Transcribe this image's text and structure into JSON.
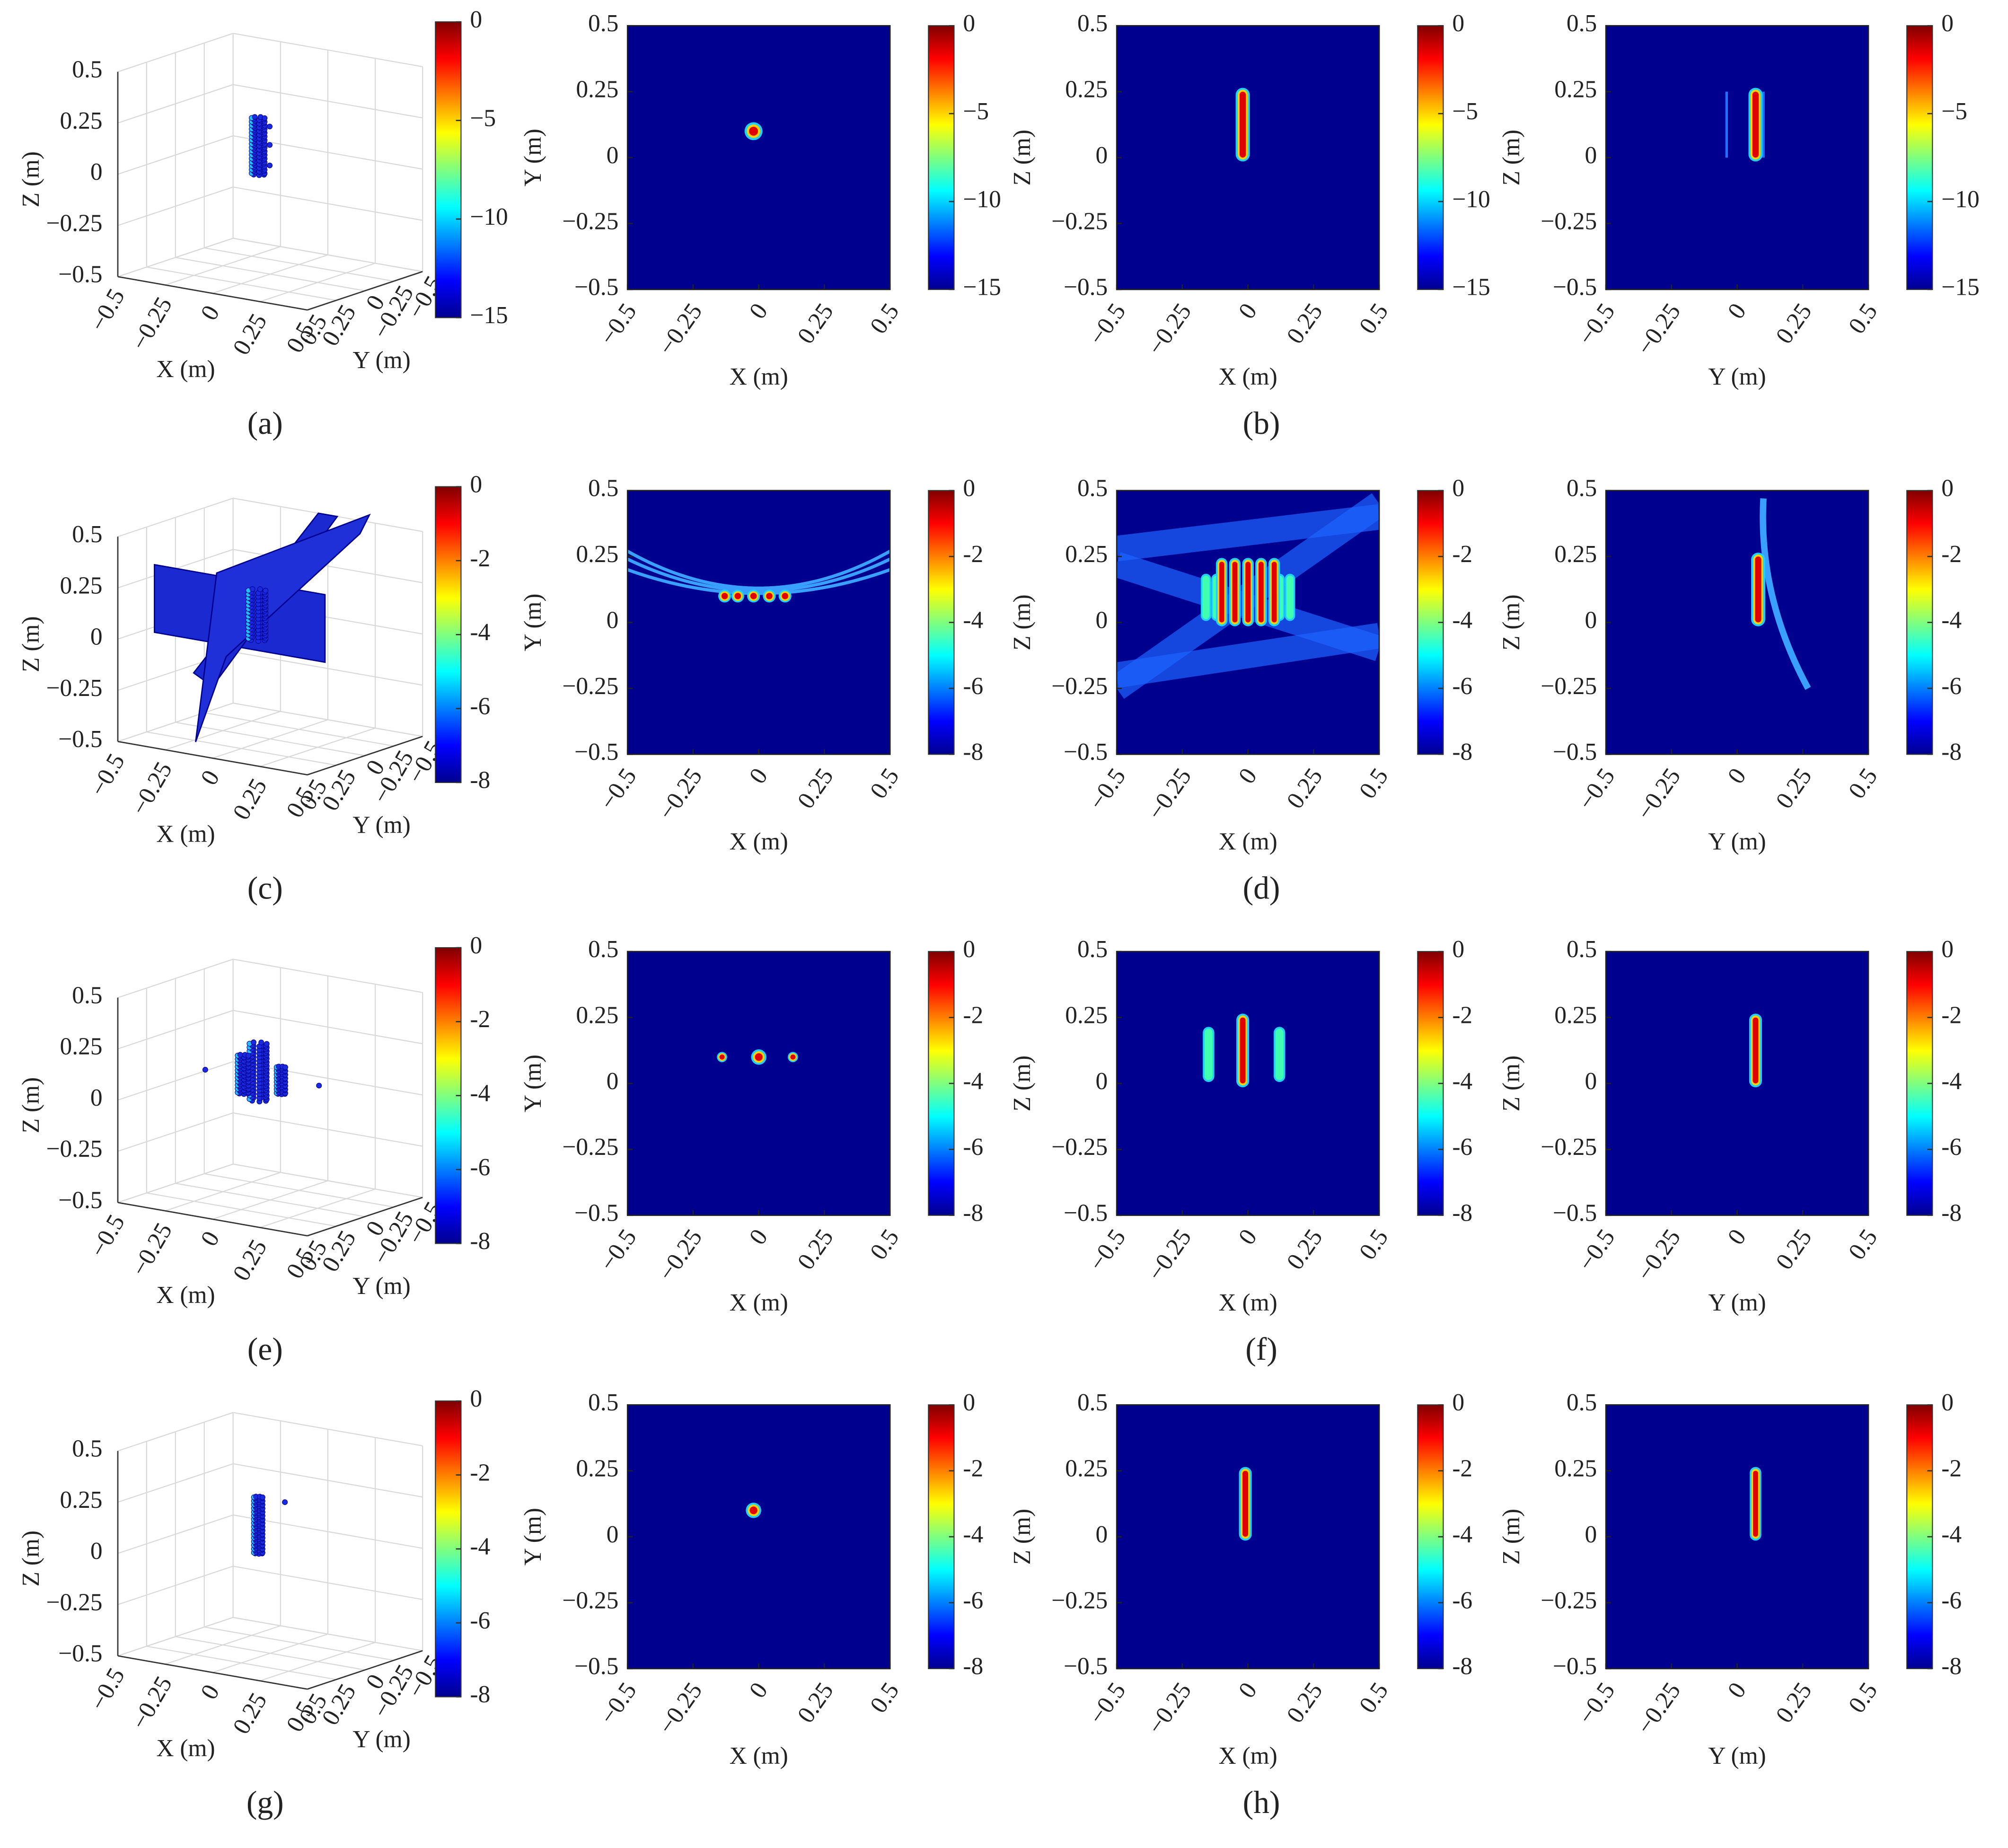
{
  "chart_data": [
    {
      "type": "scatter3d",
      "xlabel": "X (m)",
      "ylabel": "Y (m)",
      "zlabel": "Z (m)",
      "xlim": [
        -0.5,
        0.5
      ],
      "ylim": [
        -0.5,
        0.5
      ],
      "zlim": [
        -0.5,
        0.5
      ],
      "xticks": [
        {
          "value": -0.5,
          "label": "−0.5"
        },
        {
          "value": -0.25,
          "label": "−0.25"
        },
        0,
        0.25,
        0.5
      ],
      "yticks": [
        {
          "value": -0.5,
          "label": "−0.5"
        },
        {
          "value": -0.25,
          "label": "−0.25"
        },
        0,
        0.25,
        0.5
      ],
      "zticks": [
        {
          "value": -0.5,
          "label": "−0.5"
        },
        {
          "value": -0.25,
          "label": "−0.25"
        },
        0,
        0.25,
        0.5
      ],
      "clim": [
        -15,
        0
      ],
      "cticks": [
        0,
        {
          "value": -5,
          "label": "−5"
        },
        {
          "value": -10,
          "label": "−10"
        },
        {
          "value": -15,
          "label": "−15"
        }
      ],
      "colormap": "jet"
    },
    {
      "type": "heatmap",
      "xlabel": "X (m)",
      "ylabel": "Y (m)",
      "xlim": [
        -0.5,
        0.5
      ],
      "ylim": [
        -0.5,
        0.5
      ],
      "xticks": [
        {
          "value": -0.5,
          "label": "−0.5"
        },
        {
          "value": -0.25,
          "label": "−0.25"
        },
        0,
        0.25,
        0.5
      ],
      "yticks": [
        {
          "value": -0.5,
          "label": "−0.5"
        },
        {
          "value": -0.25,
          "label": "−0.25"
        },
        0,
        0.25,
        0.5
      ],
      "clim": [
        -15,
        0
      ],
      "cticks": [
        0,
        {
          "value": -5,
          "label": "−5"
        },
        {
          "value": -10,
          "label": "−10"
        },
        {
          "value": -15,
          "label": "−15"
        }
      ],
      "colormap": "jet"
    },
    {
      "type": "heatmap",
      "xlabel": "X (m)",
      "ylabel": "Z (m)",
      "xlim": [
        -0.5,
        0.5
      ],
      "ylim": [
        -0.5,
        0.5
      ],
      "xticks": [
        {
          "value": -0.5,
          "label": "−0.5"
        },
        {
          "value": -0.25,
          "label": "−0.25"
        },
        0,
        0.25,
        0.5
      ],
      "yticks": [
        {
          "value": -0.5,
          "label": "−0.5"
        },
        {
          "value": -0.25,
          "label": "−0.25"
        },
        0,
        0.25,
        0.5
      ],
      "clim": [
        -15,
        0
      ],
      "cticks": [
        0,
        {
          "value": -5,
          "label": "−5"
        },
        {
          "value": -10,
          "label": "−10"
        },
        {
          "value": -15,
          "label": "−15"
        }
      ],
      "colormap": "jet"
    },
    {
      "type": "heatmap",
      "xlabel": "Y (m)",
      "ylabel": "Z (m)",
      "xlim": [
        -0.5,
        0.5
      ],
      "ylim": [
        -0.5,
        0.5
      ],
      "xticks": [
        {
          "value": -0.5,
          "label": "−0.5"
        },
        {
          "value": -0.25,
          "label": "−0.25"
        },
        0,
        0.25,
        0.5
      ],
      "yticks": [
        {
          "value": -0.5,
          "label": "−0.5"
        },
        {
          "value": -0.25,
          "label": "−0.25"
        },
        0,
        0.25,
        0.5
      ],
      "clim": [
        -15,
        0
      ],
      "cticks": [
        0,
        {
          "value": -5,
          "label": "−5"
        },
        {
          "value": -10,
          "label": "−10"
        },
        {
          "value": -15,
          "label": "−15"
        }
      ],
      "colormap": "jet"
    },
    {
      "type": "scatter3d",
      "xlabel": "X (m)",
      "ylabel": "Y (m)",
      "zlabel": "Z (m)",
      "xlim": [
        -0.5,
        0.5
      ],
      "ylim": [
        -0.5,
        0.5
      ],
      "zlim": [
        -0.5,
        0.5
      ],
      "xticks": [
        {
          "value": -0.5,
          "label": "−0.5"
        },
        {
          "value": -0.25,
          "label": "−0.25"
        },
        0,
        0.25,
        0.5
      ],
      "yticks": [
        {
          "value": -0.5,
          "label": "−0.5"
        },
        {
          "value": -0.25,
          "label": "−0.25"
        },
        0,
        0.25,
        0.5
      ],
      "zticks": [
        {
          "value": -0.5,
          "label": "−0.5"
        },
        {
          "value": -0.25,
          "label": "−0.25"
        },
        0,
        0.25,
        0.5
      ],
      "clim": [
        -8,
        0
      ],
      "cticks": [
        0,
        -2,
        -4,
        -6,
        -8
      ],
      "colormap": "jet"
    },
    {
      "type": "heatmap",
      "xlabel": "X (m)",
      "ylabel": "Y (m)",
      "xlim": [
        -0.5,
        0.5
      ],
      "ylim": [
        -0.5,
        0.5
      ],
      "xticks": [
        {
          "value": -0.5,
          "label": "−0.5"
        },
        {
          "value": -0.25,
          "label": "−0.25"
        },
        0,
        0.25,
        0.5
      ],
      "yticks": [
        {
          "value": -0.5,
          "label": "−0.5"
        },
        {
          "value": -0.25,
          "label": "−0.25"
        },
        0,
        0.25,
        0.5
      ],
      "clim": [
        -8,
        0
      ],
      "cticks": [
        0,
        -2,
        -4,
        -6,
        -8
      ],
      "colormap": "jet"
    },
    {
      "type": "heatmap",
      "xlabel": "X (m)",
      "ylabel": "Z (m)",
      "xlim": [
        -0.5,
        0.5
      ],
      "ylim": [
        -0.5,
        0.5
      ],
      "xticks": [
        {
          "value": -0.5,
          "label": "−0.5"
        },
        {
          "value": -0.25,
          "label": "−0.25"
        },
        0,
        0.25,
        0.5
      ],
      "yticks": [
        {
          "value": -0.5,
          "label": "−0.5"
        },
        {
          "value": -0.25,
          "label": "−0.25"
        },
        0,
        0.25,
        0.5
      ],
      "clim": [
        -8,
        0
      ],
      "cticks": [
        0,
        -2,
        -4,
        -6,
        -8
      ],
      "colormap": "jet"
    },
    {
      "type": "heatmap",
      "xlabel": "Y (m)",
      "ylabel": "Z (m)",
      "xlim": [
        -0.5,
        0.5
      ],
      "ylim": [
        -0.5,
        0.5
      ],
      "xticks": [
        {
          "value": -0.5,
          "label": "−0.5"
        },
        {
          "value": -0.25,
          "label": "−0.25"
        },
        0,
        0.25,
        0.5
      ],
      "yticks": [
        {
          "value": -0.5,
          "label": "−0.5"
        },
        {
          "value": -0.25,
          "label": "−0.25"
        },
        0,
        0.25,
        0.5
      ],
      "clim": [
        -8,
        0
      ],
      "cticks": [
        0,
        -2,
        -4,
        -6,
        -8
      ],
      "colormap": "jet"
    },
    {
      "type": "scatter3d",
      "xlabel": "X (m)",
      "ylabel": "Y (m)",
      "zlabel": "Z (m)",
      "xlim": [
        -0.5,
        0.5
      ],
      "ylim": [
        -0.5,
        0.5
      ],
      "zlim": [
        -0.5,
        0.5
      ],
      "xticks": [
        {
          "value": -0.5,
          "label": "−0.5"
        },
        {
          "value": -0.25,
          "label": "−0.25"
        },
        0,
        0.25,
        0.5
      ],
      "yticks": [
        {
          "value": -0.5,
          "label": "−0.5"
        },
        {
          "value": -0.25,
          "label": "−0.25"
        },
        0,
        0.25,
        0.5
      ],
      "zticks": [
        {
          "value": -0.5,
          "label": "−0.5"
        },
        {
          "value": -0.25,
          "label": "−0.25"
        },
        0,
        0.25,
        0.5
      ],
      "clim": [
        -8,
        0
      ],
      "cticks": [
        0,
        -2,
        -4,
        -6,
        -8
      ],
      "colormap": "jet"
    },
    {
      "type": "heatmap",
      "xlabel": "X (m)",
      "ylabel": "Y (m)",
      "xlim": [
        -0.5,
        0.5
      ],
      "ylim": [
        -0.5,
        0.5
      ],
      "xticks": [
        {
          "value": -0.5,
          "label": "−0.5"
        },
        {
          "value": -0.25,
          "label": "−0.25"
        },
        0,
        0.25,
        0.5
      ],
      "yticks": [
        {
          "value": -0.5,
          "label": "−0.5"
        },
        {
          "value": -0.25,
          "label": "−0.25"
        },
        0,
        0.25,
        0.5
      ],
      "clim": [
        -8,
        0
      ],
      "cticks": [
        0,
        -2,
        -4,
        -6,
        -8
      ],
      "colormap": "jet"
    },
    {
      "type": "heatmap",
      "xlabel": "X (m)",
      "ylabel": "Z (m)",
      "xlim": [
        -0.5,
        0.5
      ],
      "ylim": [
        -0.5,
        0.5
      ],
      "xticks": [
        {
          "value": -0.5,
          "label": "−0.5"
        },
        {
          "value": -0.25,
          "label": "−0.25"
        },
        0,
        0.25,
        0.5
      ],
      "yticks": [
        {
          "value": -0.5,
          "label": "−0.5"
        },
        {
          "value": -0.25,
          "label": "−0.25"
        },
        0,
        0.25,
        0.5
      ],
      "clim": [
        -8,
        0
      ],
      "cticks": [
        0,
        -2,
        -4,
        -6,
        -8
      ],
      "colormap": "jet"
    },
    {
      "type": "heatmap",
      "xlabel": "Y (m)",
      "ylabel": "Z (m)",
      "xlim": [
        -0.5,
        0.5
      ],
      "ylim": [
        -0.5,
        0.5
      ],
      "xticks": [
        {
          "value": -0.5,
          "label": "−0.5"
        },
        {
          "value": -0.25,
          "label": "−0.25"
        },
        0,
        0.25,
        0.5
      ],
      "yticks": [
        {
          "value": -0.5,
          "label": "−0.5"
        },
        {
          "value": -0.25,
          "label": "−0.25"
        },
        0,
        0.25,
        0.5
      ],
      "clim": [
        -8,
        0
      ],
      "cticks": [
        0,
        -2,
        -4,
        -6,
        -8
      ],
      "colormap": "jet"
    },
    {
      "type": "scatter3d",
      "xlabel": "X (m)",
      "ylabel": "Y (m)",
      "zlabel": "Z (m)",
      "xlim": [
        -0.5,
        0.5
      ],
      "ylim": [
        -0.5,
        0.5
      ],
      "zlim": [
        -0.5,
        0.5
      ],
      "xticks": [
        {
          "value": -0.5,
          "label": "−0.5"
        },
        {
          "value": -0.25,
          "label": "−0.25"
        },
        0,
        0.25,
        0.5
      ],
      "yticks": [
        {
          "value": -0.5,
          "label": "−0.5"
        },
        {
          "value": -0.25,
          "label": "−0.25"
        },
        0,
        0.25,
        0.5
      ],
      "zticks": [
        {
          "value": -0.5,
          "label": "−0.5"
        },
        {
          "value": -0.25,
          "label": "−0.25"
        },
        0,
        0.25,
        0.5
      ],
      "clim": [
        -8,
        0
      ],
      "cticks": [
        0,
        -2,
        -4,
        -6,
        -8
      ],
      "colormap": "jet"
    },
    {
      "type": "heatmap",
      "xlabel": "X (m)",
      "ylabel": "Y (m)",
      "xlim": [
        -0.5,
        0.5
      ],
      "ylim": [
        -0.5,
        0.5
      ],
      "xticks": [
        {
          "value": -0.5,
          "label": "−0.5"
        },
        {
          "value": -0.25,
          "label": "−0.25"
        },
        0,
        0.25,
        0.5
      ],
      "yticks": [
        {
          "value": -0.5,
          "label": "−0.5"
        },
        {
          "value": -0.25,
          "label": "−0.25"
        },
        0,
        0.25,
        0.5
      ],
      "clim": [
        -8,
        0
      ],
      "cticks": [
        0,
        -2,
        -4,
        -6,
        -8
      ],
      "colormap": "jet"
    },
    {
      "type": "heatmap",
      "xlabel": "X (m)",
      "ylabel": "Z (m)",
      "xlim": [
        -0.5,
        0.5
      ],
      "ylim": [
        -0.5,
        0.5
      ],
      "xticks": [
        {
          "value": -0.5,
          "label": "−0.5"
        },
        {
          "value": -0.25,
          "label": "−0.25"
        },
        0,
        0.25,
        0.5
      ],
      "yticks": [
        {
          "value": -0.5,
          "label": "−0.5"
        },
        {
          "value": -0.25,
          "label": "−0.25"
        },
        0,
        0.25,
        0.5
      ],
      "clim": [
        -8,
        0
      ],
      "cticks": [
        0,
        -2,
        -4,
        -6,
        -8
      ],
      "colormap": "jet"
    },
    {
      "type": "heatmap",
      "xlabel": "Y (m)",
      "ylabel": "Z (m)",
      "xlim": [
        -0.5,
        0.5
      ],
      "ylim": [
        -0.5,
        0.5
      ],
      "xticks": [
        {
          "value": -0.5,
          "label": "−0.5"
        },
        {
          "value": -0.25,
          "label": "−0.25"
        },
        0,
        0.25,
        0.5
      ],
      "yticks": [
        {
          "value": -0.5,
          "label": "−0.5"
        },
        {
          "value": -0.25,
          "label": "−0.25"
        },
        0,
        0.25,
        0.5
      ],
      "clim": [
        -8,
        0
      ],
      "cticks": [
        0,
        -2,
        -4,
        -6,
        -8
      ],
      "colormap": "jet"
    }
  ],
  "captions": [
    "(a)",
    "(b)",
    "(c)",
    "(d)",
    "(e)",
    "(f)",
    "(g)",
    "(h)"
  ]
}
